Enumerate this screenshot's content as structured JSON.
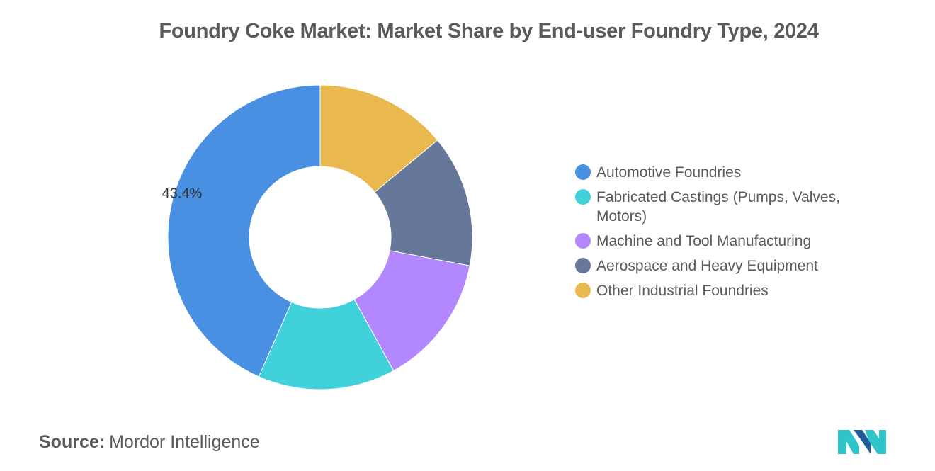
{
  "source": {
    "label": "Source:",
    "name": "Mordor Intelligence"
  },
  "colors": {
    "automotive": "#4A90E2",
    "fabricated": "#40D1DB",
    "machine": "#B388FF",
    "aerospace": "#657899",
    "other": "#E9B84E",
    "logo_teal": "#2EC4C9",
    "logo_blue": "#1F5C99"
  },
  "chart_data": {
    "type": "pie",
    "title": "Foundry Coke Market: Market Share by End-user Foundry Type, 2024",
    "donut": true,
    "legend_position": "right",
    "categories": [
      "Automotive Foundries",
      "Fabricated Castings (Pumps, Valves, Motors)",
      "Machine and Tool Manufacturing",
      "Aerospace and Heavy Equipment",
      "Other Industrial Foundries"
    ],
    "values": [
      43.4,
      14.6,
      14.0,
      14.0,
      14.0
    ],
    "data_labels": [
      "43.4%",
      "",
      "",
      "",
      ""
    ],
    "colors": [
      "#4A90E2",
      "#40D1DB",
      "#B388FF",
      "#657899",
      "#E9B84E"
    ]
  }
}
